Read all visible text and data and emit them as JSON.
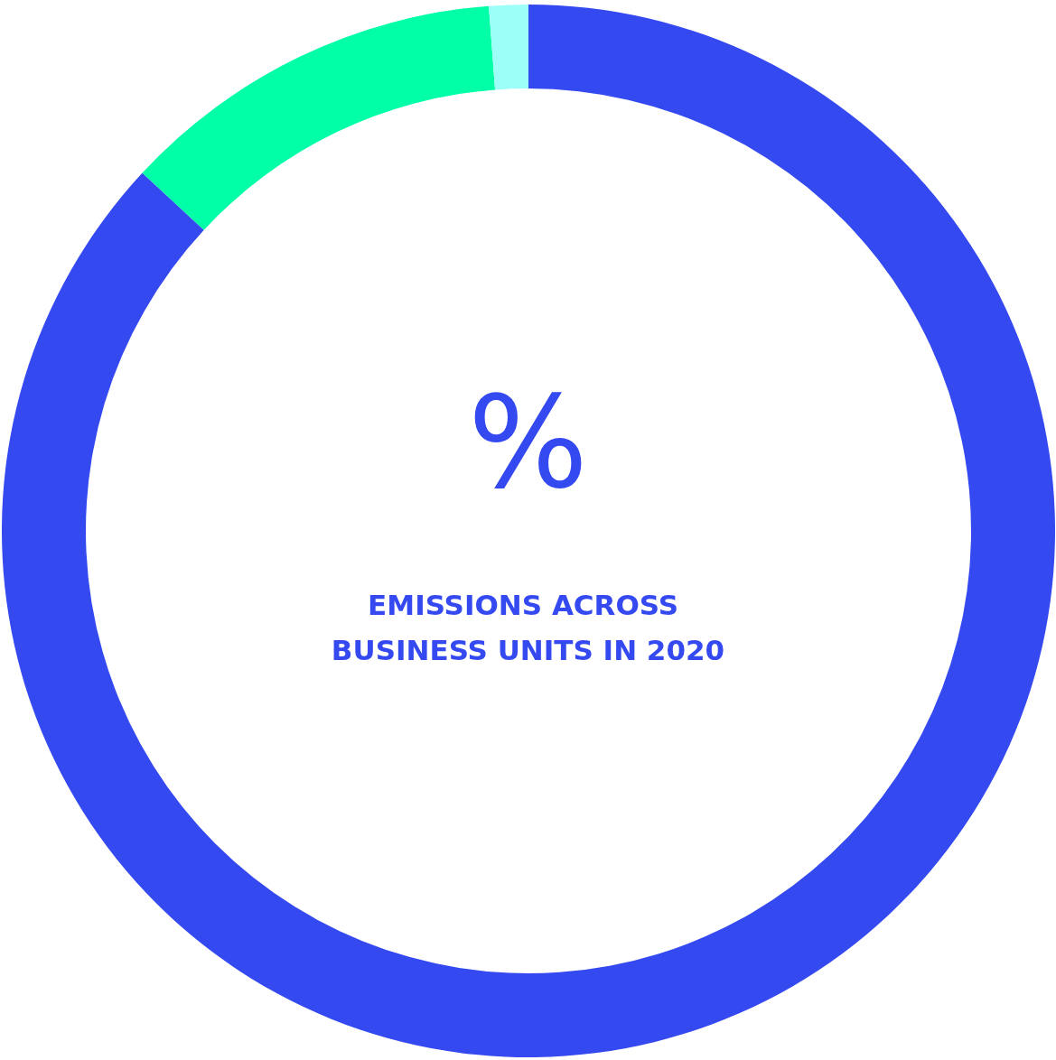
{
  "chart_data": {
    "type": "donut",
    "title": "%",
    "subtitle": "EMISSIONS ACROSS BUSINESS UNITS IN 2020",
    "categories": [
      null,
      null,
      null
    ],
    "values": [
      86.9,
      11.9,
      1.2
    ],
    "colors": [
      "#3449f0",
      "#00ffa6",
      "#9cfff8"
    ]
  }
}
